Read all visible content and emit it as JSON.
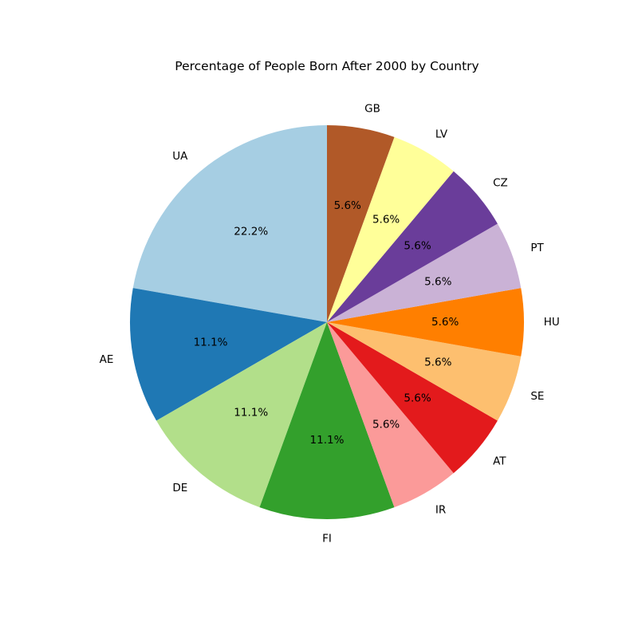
{
  "chart_data": {
    "type": "pie",
    "title": "Percentage of People Born After 2000 by Country",
    "start_angle_deg": 90,
    "direction": "counterclockwise",
    "categories": [
      "UA",
      "AE",
      "DE",
      "FI",
      "IR",
      "AT",
      "SE",
      "HU",
      "PT",
      "CZ",
      "LV",
      "GB"
    ],
    "values": [
      4,
      2,
      2,
      2,
      1,
      1,
      1,
      1,
      1,
      1,
      1,
      1
    ],
    "percent_labels": [
      "22.2%",
      "11.1%",
      "11.1%",
      "11.1%",
      "5.6%",
      "5.6%",
      "5.6%",
      "5.6%",
      "5.6%",
      "5.6%",
      "5.6%",
      "5.6%"
    ],
    "colors": [
      "#a6cee3",
      "#1f78b4",
      "#b2df8a",
      "#33a02c",
      "#fb9a99",
      "#e31a1c",
      "#fdbf6f",
      "#ff7f00",
      "#cab2d6",
      "#6a3d9a",
      "#ffff99",
      "#b15928"
    ],
    "legend": "none"
  }
}
